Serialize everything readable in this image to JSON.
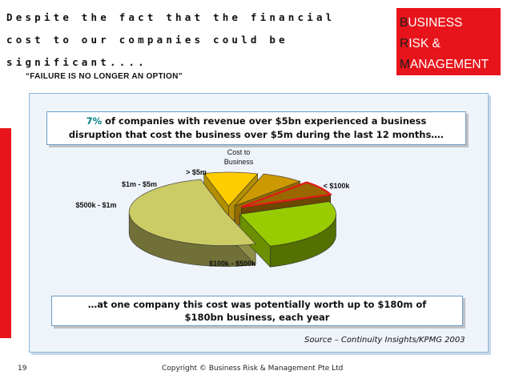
{
  "slide": {
    "title_lines": [
      "Despite the fact that the financial",
      "cost to our companies could be",
      "significant...."
    ],
    "subtitle": "“FAILURE IS NO LONGER AN OPTION”",
    "brand": [
      {
        "initial": "B",
        "rest": "USINESS"
      },
      {
        "initial": "R",
        "rest": "ISK &"
      },
      {
        "initial": "M",
        "rest": "ANAGEMENT"
      }
    ],
    "callout_top": {
      "highlight": "7%",
      "line1_rest": " of companies with revenue over $5bn experienced a business",
      "line2": "disruption that cost the business over $5m during the last 12 months…."
    },
    "callout_bottom": {
      "line1": "…at one company this cost was potentially worth up to $180m of",
      "line2": "$180bn business, each year"
    },
    "source": "Source – Continuity Insights/KPMG 2003",
    "page_number": "19",
    "copyright": "Copyright © Business Risk & Management Pte Ltd"
  },
  "colors": {
    "brand_red": "#e8141b",
    "highlight_teal": "#008080"
  },
  "chart_data": {
    "type": "pie",
    "title": "Cost to Business",
    "title_lines": [
      "Cost to",
      "Business"
    ],
    "style": "3d-exploded",
    "categories": [
      "< $100k",
      "$100k - $500k",
      "$500k - $1m",
      "$1m - $5m",
      "> $5m"
    ],
    "values": [
      26,
      51,
      9,
      7,
      7
    ],
    "colors": [
      "#99cc00",
      "#cccc66",
      "#ffcc00",
      "#cc9900",
      "#996600"
    ],
    "highlight": "> $5m",
    "highlight_color": "#e8141b"
  }
}
